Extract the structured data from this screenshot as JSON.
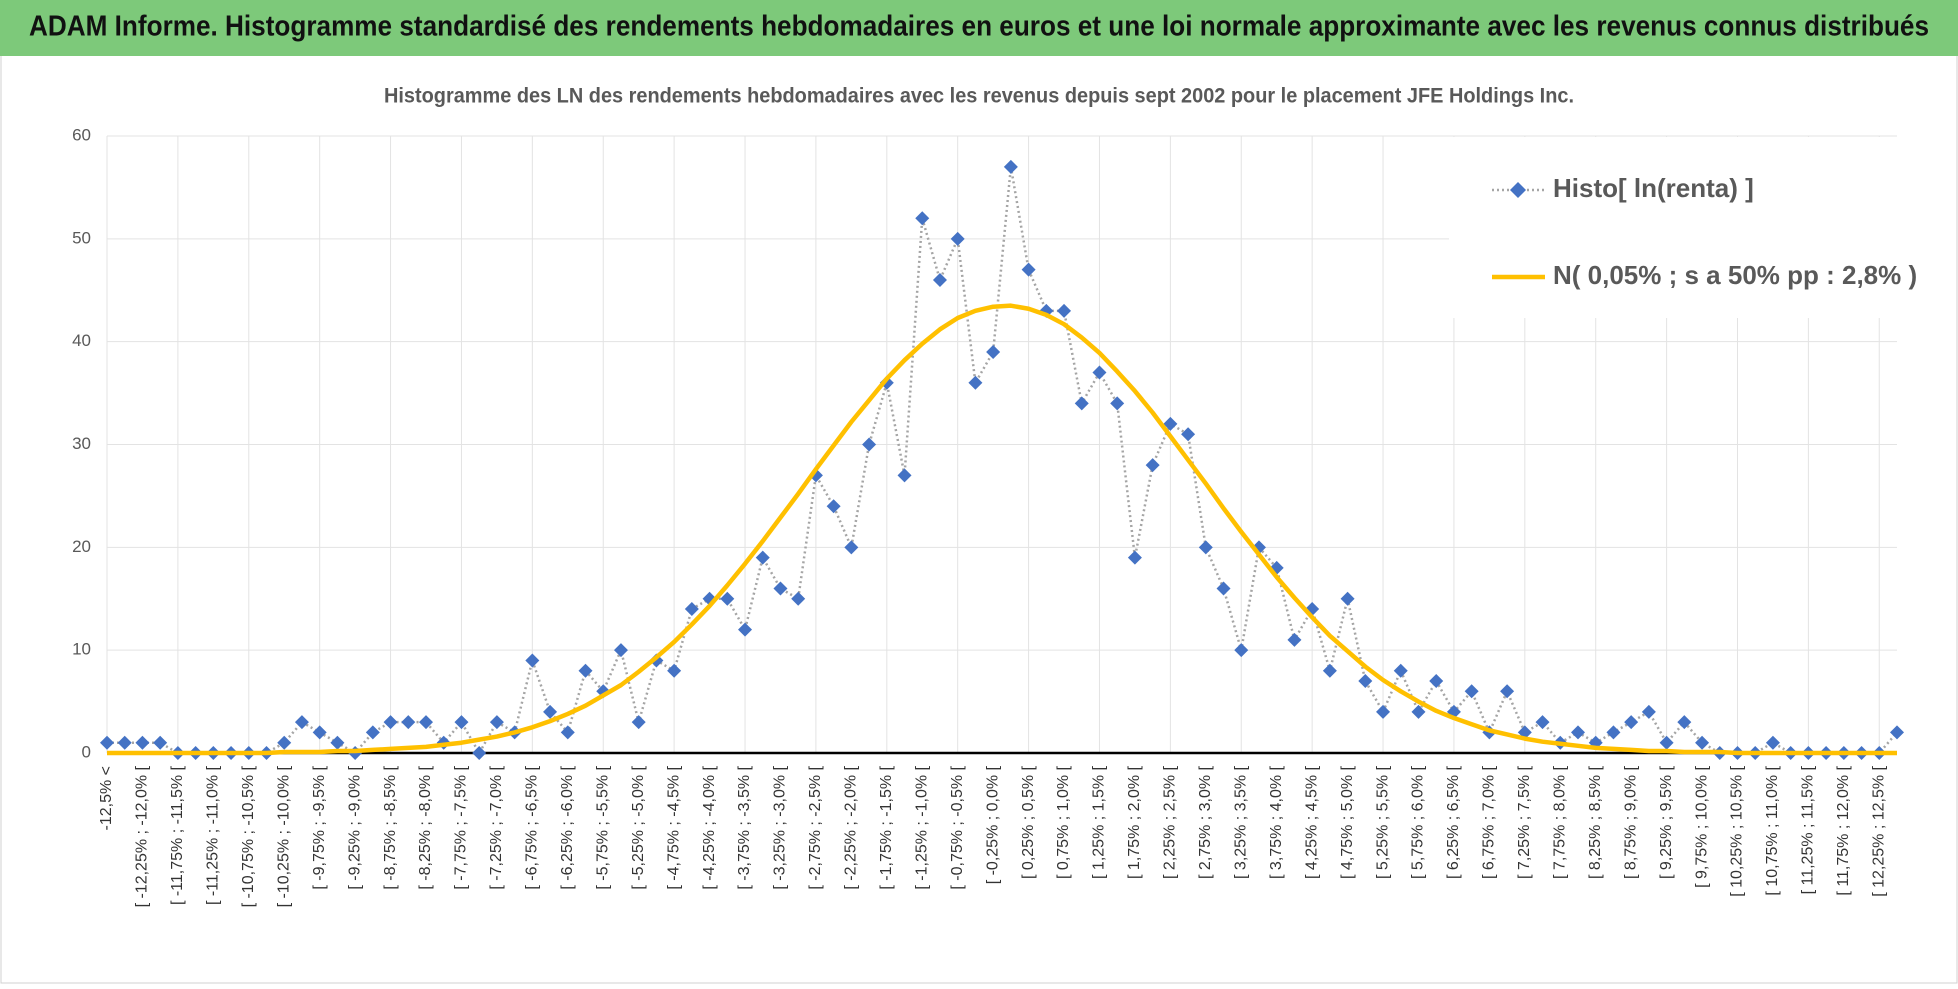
{
  "header": {
    "title": "ADAM Informe. Histogramme standardisé des rendements hebdomadaires en euros et une loi normale approximante avec les revenus connus distribués"
  },
  "chart_data": {
    "type": "line",
    "title": "Histogramme des LN des rendements hebdomadaires avec les revenus depuis sept 2002 pour le placement JFE Holdings Inc.",
    "categories": [
      "-12,5% <",
      null,
      "[ -12,25% ; -12,0% [",
      null,
      "[ -11,75% ; -11,5% [",
      null,
      "[ -11,25% ; -11,0% [",
      null,
      "[ -10,75% ; -10,5% [",
      null,
      "[ -10,25% ; -10,0% [",
      null,
      "[ -9,75% ; -9,5% [",
      null,
      "[ -9,25% ; -9,0% [",
      null,
      "[ -8,75% ; -8,5% [",
      null,
      "[ -8,25% ; -8,0% [",
      null,
      "[ -7,75% ; -7,5% [",
      null,
      "[ -7,25% ; -7,0% [",
      null,
      "[ -6,75% ; -6,5% [",
      null,
      "[ -6,25% ; -6,0% [",
      null,
      "[ -5,75% ; -5,5% [",
      null,
      "[ -5,25% ; -5,0% [",
      null,
      "[ -4,75% ; -4,5% [",
      null,
      "[ -4,25% ; -4,0% [",
      null,
      "[ -3,75% ; -3,5% [",
      null,
      "[ -3,25% ; -3,0% [",
      null,
      "[ -2,75% ; -2,5% [",
      null,
      "[ -2,25% ; -2,0% [",
      null,
      "[ -1,75% ; -1,5% [",
      null,
      "[ -1,25% ; -1,0% [",
      null,
      "[ -0,75% ; -0,5% [",
      null,
      "[ -0,25% ; 0,0% [",
      null,
      "[ 0,25% ; 0,5% [",
      null,
      "[ 0,75% ; 1,0% [",
      null,
      "[ 1,25% ; 1,5% [",
      null,
      "[ 1,75% ; 2,0% [",
      null,
      "[ 2,25% ; 2,5% [",
      null,
      "[ 2,75% ; 3,0% [",
      null,
      "[ 3,25% ; 3,5% [",
      null,
      "[ 3,75% ; 4,0% [",
      null,
      "[ 4,25% ; 4,5% [",
      null,
      "[ 4,75% ; 5,0% [",
      null,
      "[ 5,25% ; 5,5% [",
      null,
      "[ 5,75% ; 6,0% [",
      null,
      "[ 6,25% ; 6,5% [",
      null,
      "[ 6,75% ; 7,0% [",
      null,
      "[ 7,25% ; 7,5% [",
      null,
      "[ 7,75% ; 8,0% [",
      null,
      "[ 8,25% ; 8,5% [",
      null,
      "[ 8,75% ; 9,0% [",
      null,
      "[ 9,25% ; 9,5% [",
      null,
      "[ 9,75% ; 10,0% [",
      null,
      "[ 10,25% ; 10,5% [",
      null,
      "[ 10,75% ; 11,0% [",
      null,
      "[ 11,25% ; 11,5% [",
      null,
      "[ 11,75% ; 12,0% [",
      null,
      "[ 12,25% ; 12,5% [",
      null
    ],
    "series": [
      {
        "name": "Histo[ ln(renta) ]",
        "color": "#4472c4",
        "line_color": "#a5a5a5",
        "line_style": "dotted",
        "marker": "diamond",
        "values": [
          1,
          1,
          1,
          1,
          0,
          0,
          0,
          0,
          0,
          0,
          1,
          3,
          2,
          1,
          0,
          2,
          3,
          3,
          3,
          1,
          3,
          0,
          3,
          2,
          9,
          4,
          2,
          8,
          6,
          10,
          3,
          9,
          8,
          14,
          15,
          15,
          12,
          19,
          16,
          15,
          27,
          24,
          20,
          30,
          36,
          27,
          52,
          46,
          50,
          36,
          39,
          57,
          47,
          43,
          43,
          34,
          37,
          34,
          19,
          28,
          32,
          31,
          20,
          16,
          10,
          20,
          18,
          11,
          14,
          8,
          15,
          7,
          4,
          8,
          4,
          7,
          4,
          6,
          2,
          6,
          2,
          3,
          1,
          2,
          1,
          2,
          3,
          4,
          1,
          3,
          1,
          0,
          0,
          0,
          1,
          0,
          0,
          0,
          0,
          0,
          0,
          2
        ]
      },
      {
        "name": "N( 0,05% ; s a 50% pp : 2,8% )",
        "color": "#ffc000",
        "line_style": "solid",
        "marker": "none",
        "values": [
          0,
          0,
          0,
          0,
          0,
          0,
          0,
          0,
          0,
          0,
          0.1,
          0.1,
          0.1,
          0.2,
          0.2,
          0.3,
          0.4,
          0.5,
          0.6,
          0.8,
          1.0,
          1.3,
          1.6,
          2.0,
          2.5,
          3.1,
          3.8,
          4.6,
          5.6,
          6.6,
          7.9,
          9.3,
          10.8,
          12.5,
          14.3,
          16.3,
          18.4,
          20.6,
          22.9,
          25.2,
          27.6,
          29.9,
          32.2,
          34.3,
          36.4,
          38.2,
          39.8,
          41.2,
          42.3,
          43.0,
          43.4,
          43.5,
          43.2,
          42.6,
          41.7,
          40.4,
          38.9,
          37.1,
          35.2,
          33.1,
          30.8,
          28.5,
          26.2,
          23.8,
          21.5,
          19.3,
          17.1,
          15.1,
          13.2,
          11.4,
          9.9,
          8.4,
          7.1,
          6.0,
          5.0,
          4.1,
          3.4,
          2.8,
          2.2,
          1.8,
          1.4,
          1.1,
          0.9,
          0.7,
          0.5,
          0.4,
          0.3,
          0.2,
          0.2,
          0.1,
          0.1,
          0.1,
          0,
          0,
          0,
          0,
          0,
          0,
          0,
          0,
          0,
          0
        ]
      }
    ],
    "ylim": [
      0,
      60
    ],
    "yticks": [
      0,
      10,
      20,
      30,
      40,
      50,
      60
    ],
    "grid": true,
    "legend": "top-right"
  }
}
